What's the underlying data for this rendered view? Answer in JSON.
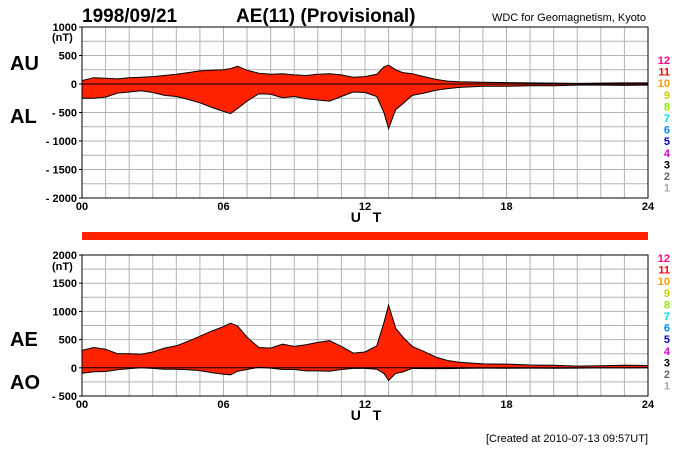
{
  "header": {
    "date": "1998/09/21",
    "title": "AE(11) (Provisional)",
    "source": "WDC for Geomagnetism, Kyoto"
  },
  "footer": {
    "created": "[Created at 2010-07-13 09:57UT]"
  },
  "colors": {
    "fill": "#ff2200",
    "legend": [
      "#ff0088",
      "#ff0000",
      "#ff9900",
      "#cccc00",
      "#88ee00",
      "#00dddd",
      "#0088ff",
      "#0000cc",
      "#cc00cc",
      "#000000",
      "#666666",
      "#aaaaaa"
    ]
  },
  "legend": [
    "12",
    "11",
    "10",
    "9",
    "8",
    "7",
    "6",
    "5",
    "4",
    "3",
    "2",
    "1"
  ],
  "chart_data": [
    {
      "type": "area",
      "panel": "top",
      "unit": "(nT)",
      "upper_label": "AU",
      "lower_label": "AL",
      "xlabel": "U T",
      "xlim": [
        0,
        24
      ],
      "ylim": [
        -2000,
        1000
      ],
      "yticks": [
        1000,
        500,
        0,
        -500,
        -1000,
        -1500,
        -2000
      ],
      "ytick_labels": [
        "1000",
        "500",
        "0",
        "- 500",
        "- 1000",
        "- 1500",
        "- 2000"
      ],
      "xticks": [
        0,
        6,
        12,
        18,
        24
      ],
      "xtick_labels": [
        "00",
        "06",
        "12",
        "18",
        "24"
      ],
      "grid": true,
      "series": [
        {
          "name": "AU",
          "x": [
            0,
            0.5,
            1,
            1.5,
            2,
            2.5,
            3,
            3.5,
            4,
            4.5,
            5,
            5.5,
            6,
            6.3,
            6.6,
            7,
            7.5,
            8,
            8.5,
            9,
            9.5,
            10,
            10.5,
            11,
            11.5,
            12,
            12.5,
            12.8,
            13,
            13.3,
            13.6,
            14,
            14.5,
            15,
            15.5,
            16,
            17,
            18,
            19,
            20,
            21,
            22,
            23,
            24
          ],
          "values": [
            60,
            110,
            100,
            90,
            110,
            120,
            130,
            150,
            170,
            200,
            230,
            240,
            250,
            270,
            310,
            240,
            190,
            170,
            180,
            160,
            150,
            170,
            180,
            160,
            120,
            130,
            170,
            300,
            330,
            250,
            200,
            180,
            130,
            80,
            50,
            40,
            30,
            25,
            20,
            15,
            10,
            15,
            20,
            20
          ]
        },
        {
          "name": "AL",
          "x": [
            0,
            0.5,
            1,
            1.5,
            2,
            2.5,
            3,
            3.5,
            4,
            4.5,
            5,
            5.5,
            6,
            6.3,
            6.6,
            7,
            7.5,
            8,
            8.5,
            9,
            9.5,
            10,
            10.5,
            11,
            11.5,
            12,
            12.5,
            12.8,
            13,
            13.3,
            13.6,
            14,
            14.5,
            15,
            15.5,
            16,
            17,
            18,
            19,
            20,
            21,
            22,
            23,
            24
          ],
          "values": [
            -250,
            -250,
            -230,
            -160,
            -140,
            -120,
            -150,
            -200,
            -220,
            -270,
            -330,
            -410,
            -480,
            -520,
            -430,
            -300,
            -170,
            -180,
            -240,
            -220,
            -260,
            -280,
            -300,
            -220,
            -140,
            -150,
            -220,
            -500,
            -780,
            -450,
            -350,
            -200,
            -160,
            -110,
            -80,
            -60,
            -40,
            -40,
            -30,
            -30,
            -20,
            -20,
            -25,
            -20
          ]
        }
      ]
    },
    {
      "type": "area",
      "panel": "bottom",
      "unit": "(nT)",
      "upper_label": "AE",
      "lower_label": "AO",
      "xlabel": "U T",
      "xlim": [
        0,
        24
      ],
      "ylim": [
        -500,
        2000
      ],
      "yticks": [
        2000,
        1500,
        1000,
        500,
        0,
        -500
      ],
      "ytick_labels": [
        "2000",
        "1500",
        "1000",
        "500",
        "0",
        "- 500"
      ],
      "xticks": [
        0,
        6,
        12,
        18,
        24
      ],
      "xtick_labels": [
        "00",
        "06",
        "12",
        "18",
        "24"
      ],
      "grid": true,
      "series": [
        {
          "name": "AE",
          "x": [
            0,
            0.5,
            1,
            1.5,
            2,
            2.5,
            3,
            3.5,
            4,
            4.5,
            5,
            5.5,
            6,
            6.3,
            6.6,
            7,
            7.5,
            8,
            8.5,
            9,
            9.5,
            10,
            10.5,
            11,
            11.5,
            12,
            12.5,
            12.8,
            13,
            13.3,
            13.6,
            14,
            14.5,
            15,
            15.5,
            16,
            17,
            18,
            19,
            20,
            21,
            22,
            23,
            24
          ],
          "values": [
            310,
            360,
            330,
            250,
            250,
            240,
            280,
            350,
            390,
            470,
            560,
            650,
            730,
            790,
            740,
            540,
            360,
            350,
            420,
            380,
            410,
            450,
            480,
            380,
            260,
            280,
            390,
            800,
            1110,
            700,
            550,
            380,
            290,
            190,
            130,
            100,
            70,
            65,
            50,
            45,
            30,
            35,
            45,
            40
          ]
        },
        {
          "name": "AO",
          "x": [
            0,
            0.5,
            1,
            1.5,
            2,
            2.5,
            3,
            3.5,
            4,
            4.5,
            5,
            5.5,
            6,
            6.3,
            6.6,
            7,
            7.5,
            8,
            8.5,
            9,
            9.5,
            10,
            10.5,
            11,
            11.5,
            12,
            12.5,
            12.8,
            13,
            13.3,
            13.6,
            14,
            14.5,
            15,
            15.5,
            16,
            17,
            18,
            19,
            20,
            21,
            22,
            23,
            24
          ],
          "values": [
            -95,
            -70,
            -65,
            -35,
            -15,
            0,
            -10,
            -25,
            -25,
            -35,
            -50,
            -85,
            -115,
            -125,
            -60,
            -30,
            10,
            -5,
            -30,
            -30,
            -55,
            -55,
            -60,
            -30,
            -10,
            -10,
            -25,
            -100,
            -225,
            -100,
            -75,
            -10,
            -15,
            -15,
            -15,
            -10,
            -5,
            -7,
            -5,
            -7,
            -5,
            -2,
            -2,
            0
          ]
        }
      ]
    }
  ]
}
